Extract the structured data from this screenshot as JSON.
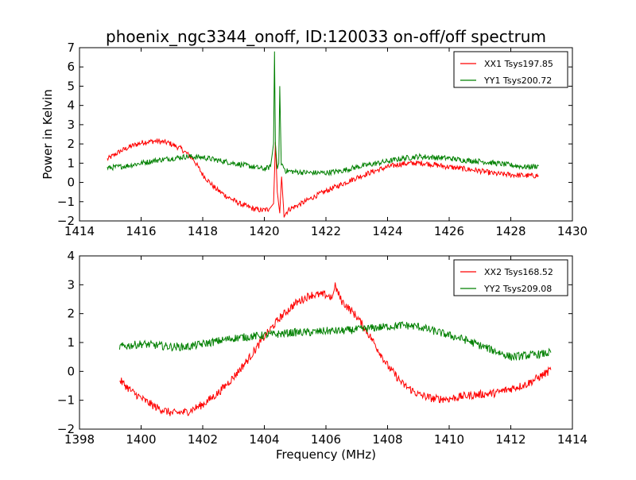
{
  "figure": {
    "title": "phoenix_ngc3344_onoff, ID:120033 on-off/off spectrum",
    "xlabel": "Frequency (MHz)"
  },
  "chart_data": [
    {
      "type": "line",
      "title": "phoenix_ngc3344_onoff, ID:120033 on-off/off spectrum",
      "xlabel": "",
      "ylabel": "Power in Kelvin",
      "xlim": [
        1414,
        1430
      ],
      "ylim": [
        -2,
        7
      ],
      "xticks": [
        1414,
        1416,
        1418,
        1420,
        1422,
        1424,
        1426,
        1428,
        1430
      ],
      "yticks": [
        -2,
        -1,
        0,
        1,
        2,
        3,
        4,
        5,
        6,
        7
      ],
      "grid": false,
      "legend_position": "top-right",
      "series": [
        {
          "name": "XX1 Tsys197.85",
          "color": "#ff0000",
          "x": [
            1414.9,
            1415.3,
            1415.7,
            1416.1,
            1416.5,
            1416.9,
            1417.3,
            1417.7,
            1418.0,
            1418.4,
            1418.8,
            1419.2,
            1419.6,
            1419.9,
            1420.15,
            1420.3,
            1420.36,
            1420.42,
            1420.5,
            1420.56,
            1420.64,
            1420.8,
            1421.2,
            1421.6,
            1422.0,
            1422.5,
            1423.0,
            1423.5,
            1424.0,
            1424.4,
            1424.8,
            1425.2,
            1425.6,
            1426.0,
            1426.5,
            1427.0,
            1427.5,
            1428.0,
            1428.5,
            1428.9
          ],
          "y": [
            1.2,
            1.6,
            1.9,
            2.1,
            2.15,
            2.05,
            1.75,
            1.2,
            0.4,
            -0.3,
            -0.75,
            -1.1,
            -1.35,
            -1.45,
            -1.4,
            -1.1,
            2.1,
            -0.5,
            -1.6,
            0.3,
            -1.7,
            -1.4,
            -1.1,
            -0.75,
            -0.45,
            -0.1,
            0.25,
            0.55,
            0.8,
            0.95,
            1.0,
            1.0,
            0.9,
            0.8,
            0.7,
            0.6,
            0.45,
            0.4,
            0.35,
            0.35
          ]
        },
        {
          "name": "YY1 Tsys200.72",
          "color": "#008000",
          "x": [
            1414.9,
            1415.5,
            1416.0,
            1416.5,
            1417.0,
            1417.5,
            1418.0,
            1418.5,
            1419.0,
            1419.5,
            1420.0,
            1420.2,
            1420.3,
            1420.33,
            1420.36,
            1420.42,
            1420.47,
            1420.5,
            1420.55,
            1420.7,
            1421.0,
            1421.5,
            1422.0,
            1422.5,
            1423.0,
            1423.5,
            1424.0,
            1424.5,
            1425.0,
            1425.5,
            1426.0,
            1426.5,
            1427.0,
            1427.5,
            1428.0,
            1428.5,
            1428.9
          ],
          "y": [
            0.75,
            0.85,
            1.0,
            1.15,
            1.25,
            1.35,
            1.3,
            1.15,
            1.0,
            0.85,
            0.7,
            0.8,
            2.0,
            6.8,
            2.0,
            0.7,
            1.0,
            5.0,
            1.0,
            0.6,
            0.55,
            0.5,
            0.5,
            0.6,
            0.8,
            0.95,
            1.1,
            1.25,
            1.35,
            1.3,
            1.25,
            1.15,
            1.1,
            1.0,
            0.9,
            0.8,
            0.85
          ]
        }
      ]
    },
    {
      "type": "line",
      "title": "",
      "xlabel": "Frequency (MHz)",
      "ylabel": "",
      "xlim": [
        1398,
        1414
      ],
      "ylim": [
        -2,
        4
      ],
      "xticks": [
        1398,
        1400,
        1402,
        1404,
        1406,
        1408,
        1410,
        1412,
        1414
      ],
      "yticks": [
        -2,
        -1,
        0,
        1,
        2,
        3,
        4
      ],
      "grid": false,
      "legend_position": "top-right",
      "series": [
        {
          "name": "XX2 Tsys168.52",
          "color": "#ff0000",
          "x": [
            1399.3,
            1399.7,
            1400.1,
            1400.5,
            1401.0,
            1401.5,
            1402.0,
            1402.5,
            1403.0,
            1403.5,
            1404.0,
            1404.5,
            1405.0,
            1405.5,
            1406.0,
            1406.2,
            1406.3,
            1406.5,
            1407.0,
            1407.5,
            1408.0,
            1408.5,
            1409.0,
            1409.5,
            1410.0,
            1410.5,
            1411.0,
            1411.5,
            1412.0,
            1412.5,
            1413.0,
            1413.3
          ],
          "y": [
            -0.3,
            -0.7,
            -1.0,
            -1.25,
            -1.45,
            -1.4,
            -1.15,
            -0.75,
            -0.2,
            0.45,
            1.2,
            1.85,
            2.35,
            2.65,
            2.65,
            2.55,
            2.95,
            2.45,
            1.9,
            1.1,
            0.2,
            -0.45,
            -0.8,
            -0.95,
            -0.95,
            -0.85,
            -0.8,
            -0.75,
            -0.6,
            -0.45,
            -0.15,
            0.05
          ]
        },
        {
          "name": "YY2 Tsys209.08",
          "color": "#008000",
          "x": [
            1399.3,
            1400.0,
            1400.5,
            1401.0,
            1401.5,
            1402.0,
            1402.5,
            1403.0,
            1403.5,
            1404.0,
            1404.5,
            1405.0,
            1405.5,
            1406.0,
            1406.5,
            1407.0,
            1407.5,
            1408.0,
            1408.5,
            1409.0,
            1409.5,
            1410.0,
            1410.5,
            1411.0,
            1411.5,
            1412.0,
            1412.5,
            1413.0,
            1413.3
          ],
          "y": [
            0.85,
            0.95,
            0.9,
            0.85,
            0.85,
            0.95,
            1.05,
            1.15,
            1.2,
            1.25,
            1.3,
            1.35,
            1.35,
            1.4,
            1.4,
            1.45,
            1.5,
            1.55,
            1.6,
            1.55,
            1.4,
            1.25,
            1.1,
            0.9,
            0.7,
            0.5,
            0.55,
            0.6,
            0.65
          ]
        }
      ]
    }
  ]
}
